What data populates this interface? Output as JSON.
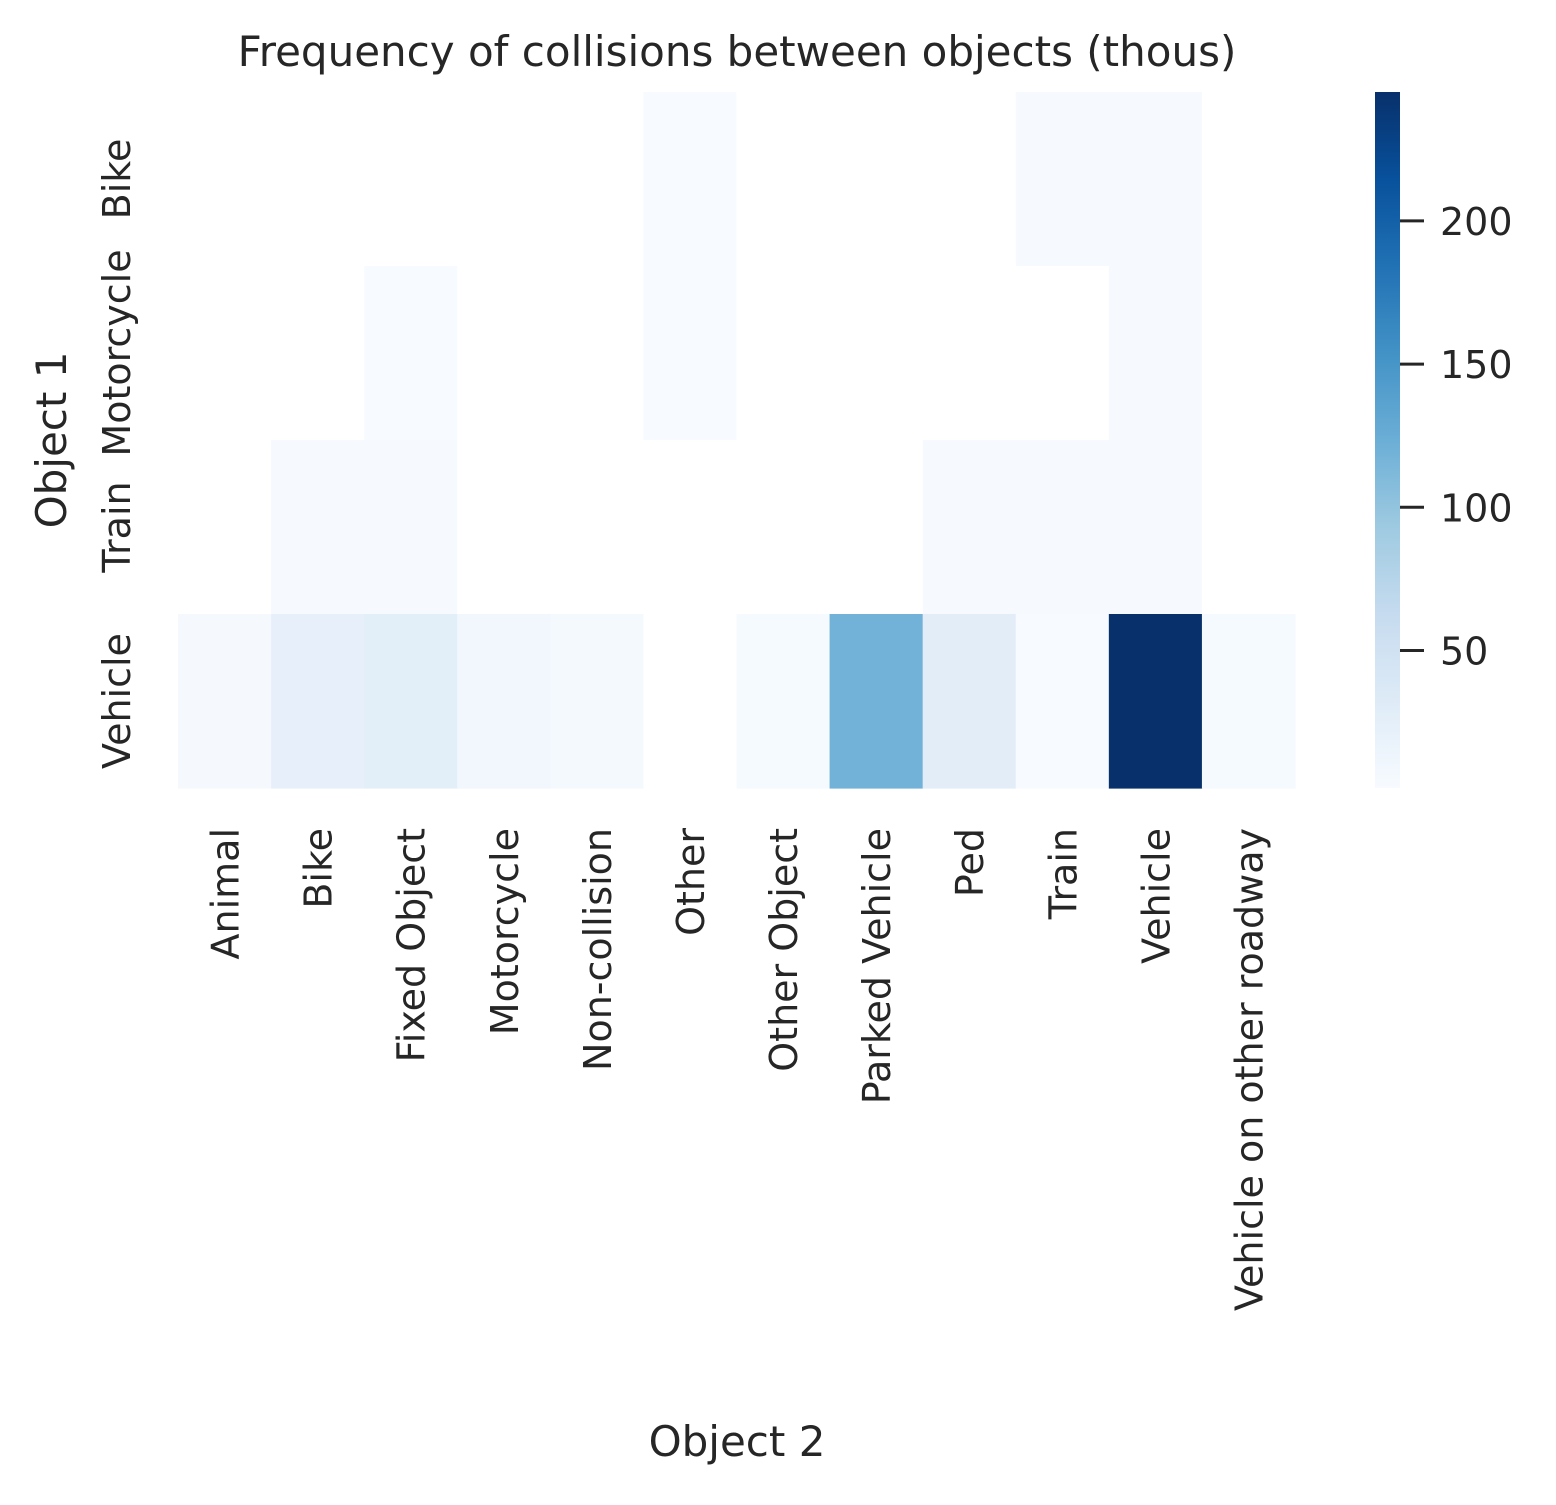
{
  "chart_data": {
    "type": "heatmap",
    "title": "Frequency of collisions between objects (thous)",
    "xlabel": "Object 2",
    "ylabel": "Object 1",
    "x_categories": [
      "Animal",
      "Bike",
      "Fixed Object",
      "Motorcycle",
      "Non-collision",
      "Other",
      "Other Object",
      "Parked Vehicle",
      "Ped",
      "Train",
      "Vehicle",
      "Vehicle on other roadway"
    ],
    "y_categories": [
      "Bike",
      "Motorcycle",
      "Train",
      "Vehicle"
    ],
    "values": [
      [
        null,
        null,
        null,
        null,
        null,
        2,
        null,
        null,
        null,
        3,
        3,
        null
      ],
      [
        null,
        null,
        2,
        null,
        null,
        2,
        null,
        null,
        null,
        null,
        3,
        null
      ],
      [
        null,
        3,
        3,
        null,
        null,
        null,
        null,
        null,
        3,
        3,
        3,
        null
      ],
      [
        5,
        22,
        27,
        9,
        6,
        null,
        4,
        119,
        28,
        2,
        245,
        4
      ]
    ],
    "colormap": "Blues",
    "colorbar": {
      "min": 2,
      "max": 245,
      "ticks": [
        50,
        100,
        150,
        200
      ],
      "tick_labels": [
        "50",
        "100",
        "150",
        "200"
      ]
    },
    "missing_color": "#ffffff"
  }
}
